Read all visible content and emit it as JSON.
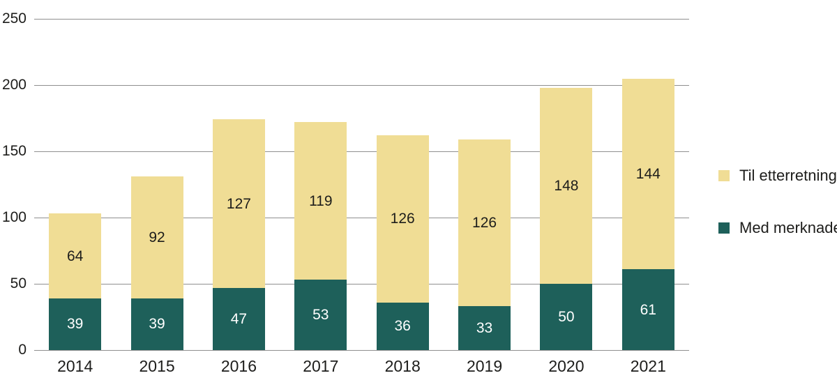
{
  "chart_data": {
    "type": "bar",
    "stacked": true,
    "title": "",
    "xlabel": "",
    "ylabel": "",
    "categories": [
      "2014",
      "2015",
      "2016",
      "2017",
      "2018",
      "2019",
      "2020",
      "2021"
    ],
    "series": [
      {
        "name": "Med merknader",
        "color": "#1e605a",
        "label_color": "#ffffff",
        "values": [
          39,
          39,
          47,
          53,
          36,
          33,
          50,
          61
        ]
      },
      {
        "name": "Til etterretning",
        "color": "#f0dd95",
        "label_color": "#1d1d1b",
        "values": [
          64,
          92,
          127,
          119,
          126,
          126,
          148,
          144
        ]
      }
    ],
    "yticks": [
      0,
      50,
      100,
      150,
      200,
      250
    ],
    "ylim": [
      0,
      250
    ],
    "grid": true,
    "gridline_color": "#8f8f8f",
    "legend_position": "right"
  },
  "legend": {
    "items": [
      {
        "label": "Til etterretning",
        "color": "#f0dd95"
      },
      {
        "label": "Med merknader",
        "color": "#1e605a"
      }
    ]
  }
}
